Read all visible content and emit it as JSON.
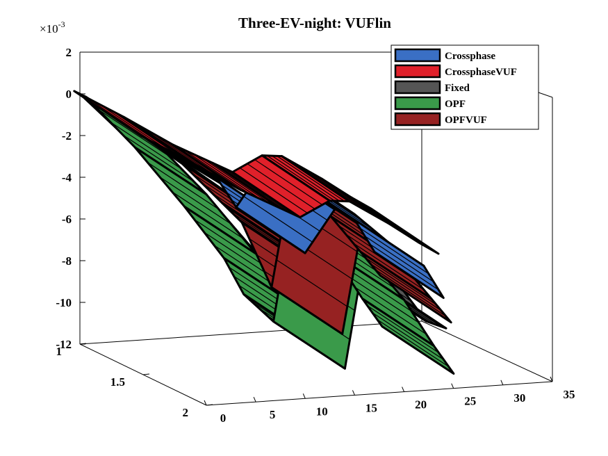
{
  "chart_data": {
    "type": "surface3d",
    "title": "Three-EV-night: VUFlin",
    "z_exponent": "×10",
    "z_exponent_power": "-3",
    "x_ticks": [
      "0",
      "5",
      "10",
      "15",
      "20",
      "25",
      "30",
      "35"
    ],
    "y_ticks": [
      "1",
      "1.5",
      "2"
    ],
    "z_ticks": [
      "2",
      "0",
      "-2",
      "-4",
      "-6",
      "-8",
      "-10",
      "-12"
    ],
    "xlim": [
      0,
      35
    ],
    "ylim": [
      1,
      2
    ],
    "zlim": [
      -12,
      2
    ],
    "legend_position": "top-right",
    "colors": {
      "Crossphase": "#3a6fc4",
      "CrossphaseVUF": "#e0202a",
      "Fixed": "#555555",
      "OPF": "#3a9a4a",
      "OPFVUF": "#962222"
    },
    "series": [
      {
        "name": "Crossphase",
        "color": "#3a6fc4",
        "x": [
          0,
          5,
          10,
          14,
          16,
          19,
          21,
          25,
          28,
          30
        ],
        "values": [
          0.0,
          -1.6,
          -3.2,
          -4.5,
          -6.0,
          -4.0,
          -4.3,
          -6.0,
          -7.0,
          -8.6
        ]
      },
      {
        "name": "CrossphaseVUF",
        "color": "#e0202a",
        "x": [
          0,
          5,
          10,
          14,
          16,
          19,
          21,
          25,
          28,
          30
        ],
        "values": [
          0.0,
          -1.4,
          -2.9,
          -3.9,
          -4.4,
          -3.7,
          -3.8,
          -5.0,
          -6.0,
          -6.6
        ]
      },
      {
        "name": "Fixed",
        "color": "#555555",
        "x": [
          0,
          5,
          10,
          14,
          16,
          19,
          21,
          25,
          28,
          30
        ],
        "values": [
          0.0,
          -2.4,
          -5.3,
          -7.4,
          -8.6,
          -10.2,
          -5.6,
          -7.6,
          -9.6,
          -10.0
        ]
      },
      {
        "name": "OPF",
        "color": "#3a9a4a",
        "x": [
          0,
          5,
          10,
          14,
          16,
          19,
          21,
          25,
          28,
          30
        ],
        "values": [
          0.0,
          -2.6,
          -5.6,
          -8.2,
          -10.0,
          -11.4,
          -5.9,
          -8.3,
          -10.6,
          -12.0
        ]
      },
      {
        "name": "OPFVUF",
        "color": "#962222",
        "x": [
          0,
          5,
          10,
          14,
          16,
          19,
          21,
          25,
          28,
          30
        ],
        "values": [
          0.0,
          -1.8,
          -3.6,
          -5.6,
          -6.6,
          -9.8,
          -4.6,
          -6.6,
          -8.4,
          -9.6
        ]
      }
    ]
  }
}
